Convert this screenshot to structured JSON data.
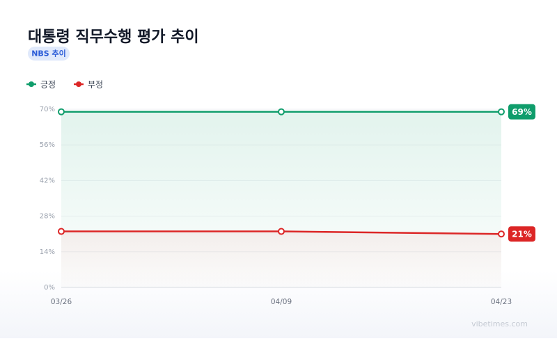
{
  "chart_data": {
    "type": "line",
    "title": "대통령 직무수행 평가 추이",
    "subtitle": "NBS 추이",
    "categories": [
      "03/26",
      "04/09",
      "04/23"
    ],
    "series": [
      {
        "name": "긍정",
        "color": "#0f9d6b",
        "values": [
          69,
          69,
          69
        ],
        "value_labels": [
          null,
          null,
          "69%"
        ]
      },
      {
        "name": "부정",
        "color": "#dc2626",
        "values": [
          22,
          22,
          21
        ],
        "value_labels": [
          null,
          null,
          "21%"
        ]
      }
    ],
    "ylim": [
      0,
      70
    ],
    "yticks": [
      {
        "value": 0,
        "label": "0%"
      },
      {
        "value": 14,
        "label": "14%"
      },
      {
        "value": 28,
        "label": "28%"
      },
      {
        "value": 42,
        "label": "42%"
      },
      {
        "value": 56,
        "label": "56%"
      },
      {
        "value": 70,
        "label": "70%"
      }
    ],
    "grid": true,
    "legend": "top-left",
    "source": "vibetimes.com"
  }
}
